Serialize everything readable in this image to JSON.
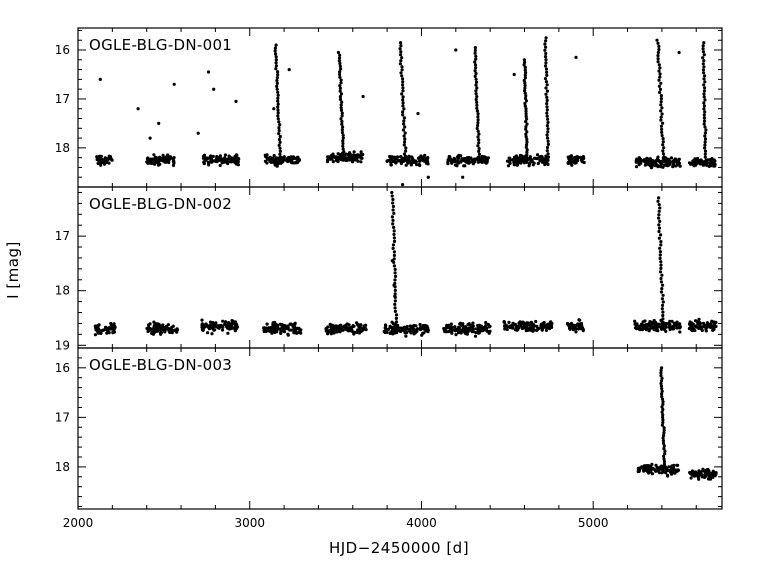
{
  "chart_data": {
    "type": "scatter",
    "xlabel": "HJD−2450000 [d]",
    "ylabel": "I [mag]",
    "xlim": [
      2000,
      5750
    ],
    "x_ticks": [
      2000,
      3000,
      4000,
      5000
    ],
    "y_inverted": true,
    "shared_x": true,
    "panels": [
      {
        "label": "OGLE-BLG-DN-001",
        "ylim": [
          15.55,
          18.8
        ],
        "y_ticks": [
          16,
          17,
          18
        ],
        "quiescence": [
          {
            "x": [
              2100,
              2200
            ],
            "mag": 18.25
          },
          {
            "x": [
              2400,
              2560
            ],
            "mag": 18.25
          },
          {
            "x": [
              2730,
              2940
            ],
            "mag": 18.25
          },
          {
            "x": [
              3090,
              3290
            ],
            "mag": 18.25
          },
          {
            "x": [
              3450,
              3660
            ],
            "mag": 18.2
          },
          {
            "x": [
              3800,
              4040
            ],
            "mag": 18.25
          },
          {
            "x": [
              4150,
              4390
            ],
            "mag": 18.25
          },
          {
            "x": [
              4500,
              4740
            ],
            "mag": 18.25
          },
          {
            "x": [
              4850,
              4950
            ],
            "mag": 18.25
          },
          {
            "x": [
              5250,
              5510
            ],
            "mag": 18.3
          },
          {
            "x": [
              5560,
              5710
            ],
            "mag": 18.3
          }
        ],
        "outbursts": [
          {
            "x": 3150,
            "peak": 15.9,
            "decay": 80
          },
          {
            "x": 3520,
            "peak": 16.05,
            "decay": 70
          },
          {
            "x": 3875,
            "peak": 15.85,
            "decay": 90
          },
          {
            "x": 4310,
            "peak": 15.95,
            "decay": 70
          },
          {
            "x": 4600,
            "peak": 16.2,
            "decay": 40
          },
          {
            "x": 4720,
            "peak": 15.75,
            "decay": 50
          },
          {
            "x": 5375,
            "peak": 15.8,
            "decay": 100
          },
          {
            "x": 5640,
            "peak": 15.85,
            "decay": 40
          }
        ],
        "sparse": [
          [
            2130,
            16.6
          ],
          [
            2350,
            17.2
          ],
          [
            2420,
            17.8
          ],
          [
            2470,
            17.5
          ],
          [
            2560,
            16.7
          ],
          [
            2760,
            16.45
          ],
          [
            2790,
            16.8
          ],
          [
            2700,
            17.7
          ],
          [
            2920,
            17.05
          ],
          [
            3230,
            16.4
          ],
          [
            3660,
            16.95
          ],
          [
            3980,
            17.3
          ],
          [
            4200,
            16.0
          ],
          [
            4540,
            16.5
          ],
          [
            4900,
            16.15
          ],
          [
            5500,
            16.05
          ],
          [
            3140,
            17.2
          ],
          [
            3890,
            18.75
          ],
          [
            4040,
            18.6
          ],
          [
            4240,
            18.6
          ]
        ]
      },
      {
        "label": "OGLE-BLG-DN-002",
        "ylim": [
          16.1,
          19.05
        ],
        "y_ticks": [
          17,
          18,
          19
        ],
        "quiescence": [
          {
            "x": [
              2100,
              2220
            ],
            "mag": 18.7
          },
          {
            "x": [
              2400,
              2580
            ],
            "mag": 18.7
          },
          {
            "x": [
              2720,
              2930
            ],
            "mag": 18.65
          },
          {
            "x": [
              3080,
              3300
            ],
            "mag": 18.7
          },
          {
            "x": [
              3440,
              3680
            ],
            "mag": 18.7
          },
          {
            "x": [
              3780,
              4040
            ],
            "mag": 18.7
          },
          {
            "x": [
              4130,
              4400
            ],
            "mag": 18.7
          },
          {
            "x": [
              4480,
              4760
            ],
            "mag": 18.65
          },
          {
            "x": [
              4850,
              4950
            ],
            "mag": 18.65
          },
          {
            "x": [
              5240,
              5510
            ],
            "mag": 18.65
          },
          {
            "x": [
              5560,
              5720
            ],
            "mag": 18.65
          }
        ],
        "outbursts": [
          {
            "x": 3830,
            "peak": 16.2,
            "decay": 60
          },
          {
            "x": 5380,
            "peak": 16.3,
            "decay": 80
          }
        ],
        "sparse": [
          [
            3830,
            17.45
          ],
          [
            3840,
            17.9
          ],
          [
            3845,
            18.1
          ]
        ]
      },
      {
        "label": "OGLE-BLG-DN-003",
        "ylim": [
          15.6,
          18.85
        ],
        "y_ticks": [
          16,
          17,
          18
        ],
        "quiescence": [
          {
            "x": [
              5260,
              5500
            ],
            "mag": 18.05
          },
          {
            "x": [
              5560,
              5720
            ],
            "mag": 18.15
          }
        ],
        "outbursts": [
          {
            "x": 5395,
            "peak": 16.0,
            "decay": 60
          }
        ],
        "sparse": []
      }
    ]
  }
}
